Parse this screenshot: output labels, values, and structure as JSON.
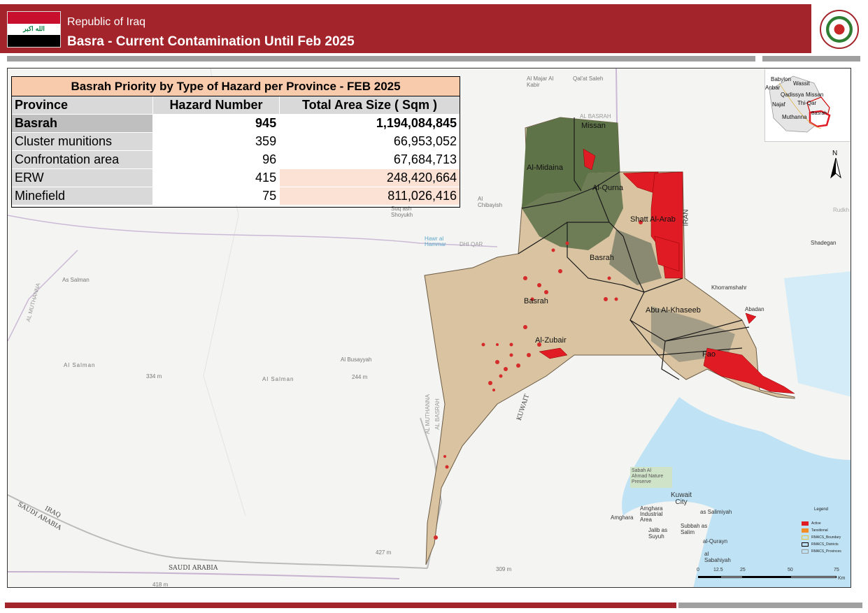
{
  "header": {
    "country": "Republic of Iraq",
    "title": "Basra - Current Contamination Until Feb 2025",
    "flag_text": "الله اكبر"
  },
  "table": {
    "title": "Basrah Priority by Type of Hazard per Province - FEB 2025",
    "columns": [
      "Province",
      "Hazard Number",
      "Total Area Size ( Sqm )"
    ],
    "total": {
      "province": "Basrah",
      "hazard_number": "945",
      "area": "1,194,084,845"
    },
    "rows": [
      {
        "province": "Cluster munitions",
        "hazard_number": "359",
        "area": "66,953,052"
      },
      {
        "province": "Confrontation  area",
        "hazard_number": "96",
        "area": "67,684,713"
      },
      {
        "province": "ERW",
        "hazard_number": "415",
        "area": "248,420,664"
      },
      {
        "province": "Minefield",
        "hazard_number": "75",
        "area": "811,026,416"
      }
    ]
  },
  "map": {
    "districts": [
      "Missan",
      "Al-Midaina",
      "Al-Qurna",
      "Shatt Al-Arab",
      "Basrah",
      "Basrah",
      "Abu Al-Khaseeb",
      "Al-Zubair",
      "Fao"
    ],
    "basemap_places": [
      "Al Majar Al Kabir",
      "Qal'at Saleh",
      "AL BASRAH",
      "DHI QAR",
      "Hawr al Hammar",
      "Al Chibayish",
      "Suq ash Shoyukh",
      "As Salman",
      "Al Salman",
      "Al Salman",
      "Al Busayyah",
      "AL MUTHANNA",
      "AL MUTHANNA",
      "AL BASRAH",
      "IRAN",
      "Khorramshahr",
      "Abadan",
      "Shadegan",
      "KUWAIT",
      "IRAQ",
      "SAUDI ARABIA",
      "SAUDI ARABIA",
      "Kuwait City",
      "Sabah Al Ahmad Nature Preserve",
      "Amghara Industrial Area",
      "Amghara",
      "as Salimiyah",
      "Subbah as Salim",
      "Jalib as Suyuh",
      "al-Qurayn",
      "al Sabahiyah",
      "Rudkh"
    ],
    "elevations": [
      "334 m",
      "244 m",
      "427 m",
      "418 m",
      "309 m"
    ],
    "colors": {
      "active": "#e01b24",
      "desert": "#d9c3a0",
      "water": "#bfe3f5",
      "header_red": "#a3242b"
    }
  },
  "inset": {
    "labels": [
      "Babylon",
      "Wassit",
      "Anbar",
      "Qadissya",
      "Missan",
      "Najaf",
      "Thi-Qar",
      "Muthanna",
      "Basrah"
    ]
  },
  "north_arrow": {
    "label": "N"
  },
  "legend": {
    "title": "Legend",
    "items": [
      {
        "label": "Active",
        "color": "#e01b24"
      },
      {
        "label": "Tansitional",
        "color": "#f28c28"
      },
      {
        "label": "RMACS_Boundary",
        "color": "#ffe680"
      },
      {
        "label": "RMACS_Districts",
        "color": "#000000"
      },
      {
        "label": "RMACS_Provinces",
        "color": "#999999"
      }
    ]
  },
  "scale": {
    "ticks": [
      "0",
      "12.5",
      "25",
      "50",
      "75"
    ],
    "unit": "Km"
  }
}
